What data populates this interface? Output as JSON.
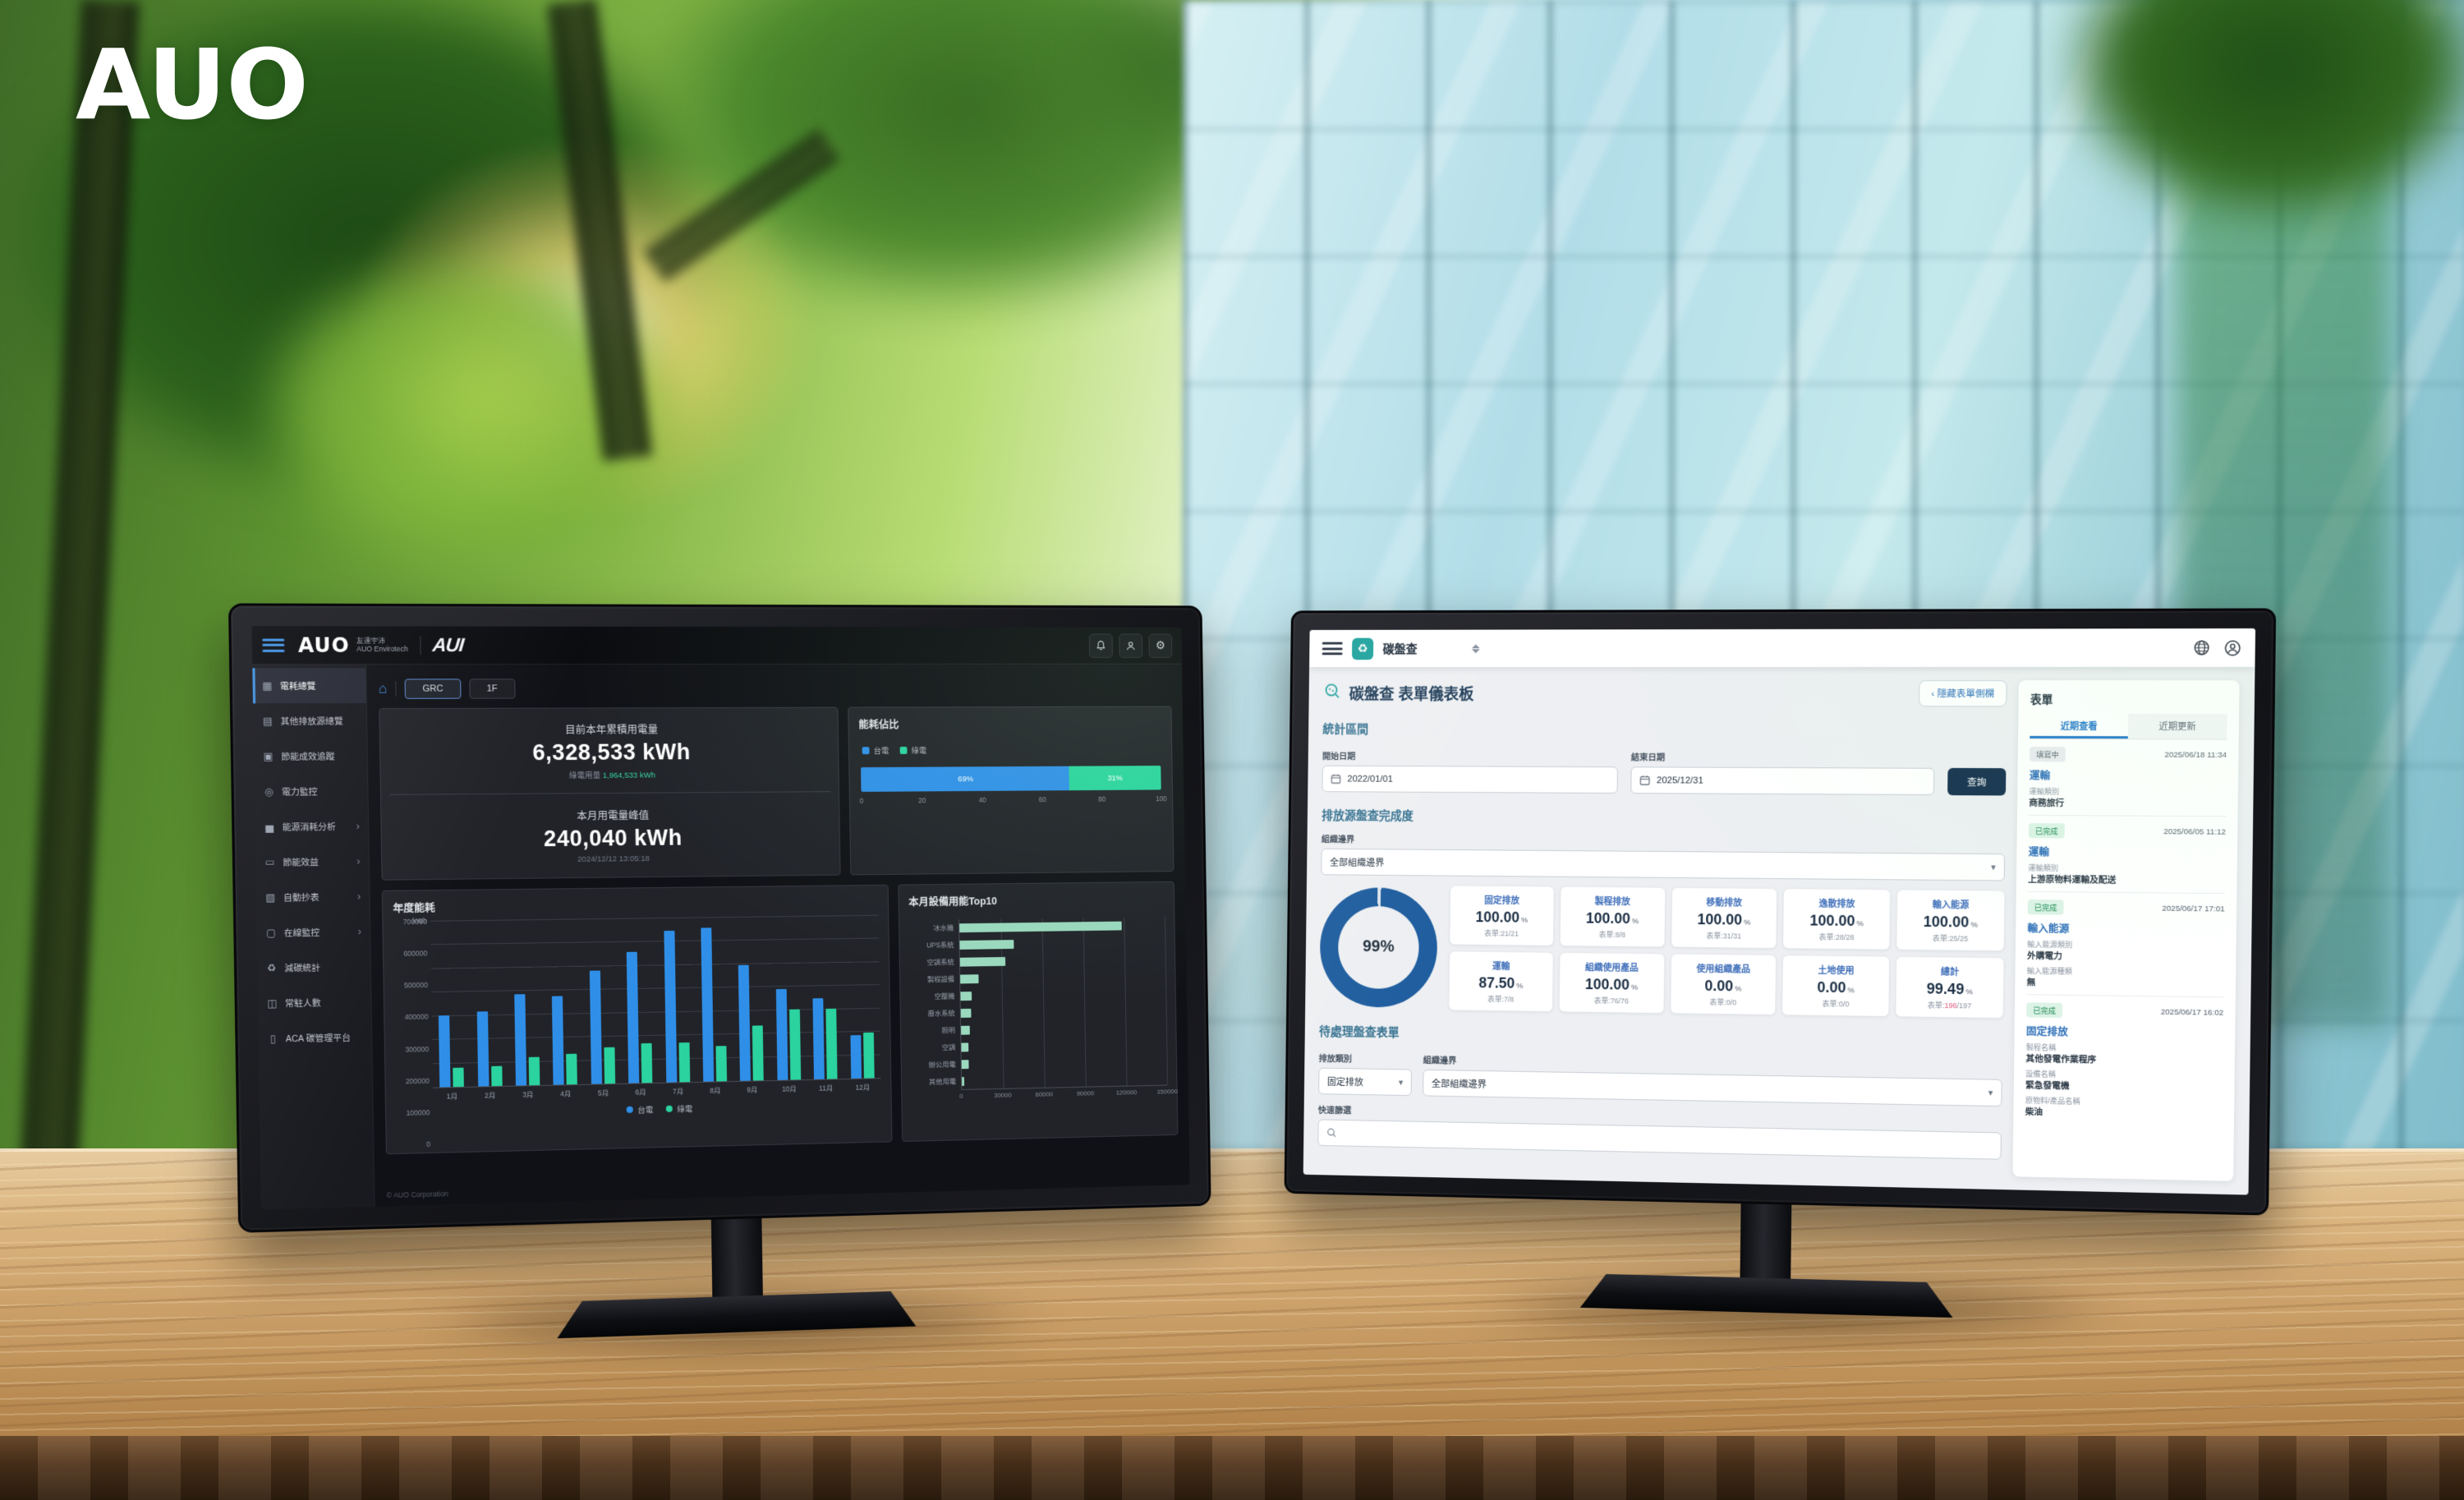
{
  "scene": {
    "brand_logo": "AUO"
  },
  "left_monitor": {
    "header": {
      "logo": "AUO",
      "logo_sub1": "友達宇沛",
      "logo_sub2": "AUO Envirotech",
      "logo2": "AUI",
      "icons": [
        "bell-icon",
        "user-icon",
        "gear-icon"
      ]
    },
    "sidebar": {
      "items": [
        {
          "icon": "▦",
          "label": "電耗總覽",
          "active": "true",
          "arrow": ""
        },
        {
          "icon": "▤",
          "label": "其他排放源總覽",
          "active": "false",
          "arrow": ""
        },
        {
          "icon": "▣",
          "label": "節能成效追蹤",
          "active": "false",
          "arrow": ""
        },
        {
          "icon": "◎",
          "label": "電力監控",
          "active": "false",
          "arrow": ""
        },
        {
          "icon": "▅",
          "label": "能源消耗分析",
          "active": "false",
          "arrow": "›"
        },
        {
          "icon": "▭",
          "label": "節能效益",
          "active": "false",
          "arrow": "›"
        },
        {
          "icon": "▧",
          "label": "自動抄表",
          "active": "false",
          "arrow": "›"
        },
        {
          "icon": "▢",
          "label": "在線監控",
          "active": "false",
          "arrow": "›"
        },
        {
          "icon": "♻",
          "label": "減碳統計",
          "active": "false",
          "arrow": ""
        },
        {
          "icon": "◫",
          "label": "常駐人數",
          "active": "false",
          "arrow": ""
        },
        {
          "icon": "▯",
          "label": "ACA 碳管理平台",
          "active": "false",
          "arrow": ""
        }
      ]
    },
    "toolbar": {
      "building_icon": "⌂",
      "tabs": [
        {
          "label": "GRC",
          "active": "true"
        },
        {
          "label": "1F",
          "active": "false"
        }
      ]
    },
    "kpi_cards": {
      "year": {
        "title": "目前本年累積用電量",
        "value": "6,328,533 kWh",
        "sub_label": "綠電用量",
        "sub_value": "1,964,533 kWh"
      },
      "month": {
        "title": "本月用電量峰值",
        "value": "240,040 kWh",
        "timestamp": "2024/12/12 13:05:18"
      }
    },
    "footer": "© AUO Corporation"
  },
  "right_monitor": {
    "appbar": {
      "logo_glyph": "♻",
      "app_title": "碳盤查"
    },
    "page": {
      "title": "碳盤查 表單儀表板",
      "collapse_button": "‹ 隱藏表單側欄"
    },
    "stats_section": {
      "heading": "統計區間",
      "start_label": "開始日期",
      "start_value": "2022/01/01",
      "end_label": "結束日期",
      "end_value": "2025/12/31",
      "query_button": "查詢"
    },
    "completion_section": {
      "heading": "排放源盤查完成度",
      "boundary_label": "組織邊界",
      "boundary_value": "全部組織邊界",
      "cards": [
        {
          "title": "固定排放",
          "value": "100.00",
          "unit": "%",
          "forms": "表單:21/21",
          "forms_red": "",
          "forms_suffix": ""
        },
        {
          "title": "製程排放",
          "value": "100.00",
          "unit": "%",
          "forms": "表單:8/8",
          "forms_red": "",
          "forms_suffix": ""
        },
        {
          "title": "移動排放",
          "value": "100.00",
          "unit": "%",
          "forms": "表單:31/31",
          "forms_red": "",
          "forms_suffix": ""
        },
        {
          "title": "逸散排放",
          "value": "100.00",
          "unit": "%",
          "forms": "表單:28/28",
          "forms_red": "",
          "forms_suffix": ""
        },
        {
          "title": "輸入能源",
          "value": "100.00",
          "unit": "%",
          "forms": "表單:25/25",
          "forms_red": "",
          "forms_suffix": ""
        },
        {
          "title": "運輸",
          "value": "87.50",
          "unit": "%",
          "forms": "表單:7/8",
          "forms_red": "",
          "forms_suffix": ""
        },
        {
          "title": "組織使用產品",
          "value": "100.00",
          "unit": "%",
          "forms": "表單:76/76",
          "forms_red": "",
          "forms_suffix": ""
        },
        {
          "title": "使用組織產品",
          "value": "0.00",
          "unit": "%",
          "forms": "表單:0/0",
          "forms_red": "",
          "forms_suffix": ""
        },
        {
          "title": "土地使用",
          "value": "0.00",
          "unit": "%",
          "forms": "表單:0/0",
          "forms_red": "",
          "forms_suffix": ""
        },
        {
          "title": "總計",
          "value": "99.49",
          "unit": "%",
          "forms": "表單:",
          "forms_red": "196",
          "forms_suffix": "/197"
        }
      ]
    },
    "pending_section": {
      "heading": "待處理盤查表單",
      "category_label": "排放類別",
      "category_value": "固定排放",
      "boundary_label": "組織邊界",
      "boundary_value": "全部組織邊界",
      "filter_label": "快速篩選"
    },
    "panel": {
      "heading": "表單",
      "tabs": [
        {
          "label": "近期查看",
          "active": "true"
        },
        {
          "label": "近期更新",
          "active": "false"
        }
      ],
      "items": [
        {
          "status": "填寫中",
          "status_type": "editing",
          "datetime": "2025/06/18 11:34",
          "title": "運輸",
          "f1l": "運輸類別",
          "f1v": "商務旅行",
          "f2l": "",
          "f2v": "",
          "f3l": "",
          "f3v": ""
        },
        {
          "status": "已完成",
          "status_type": "done",
          "datetime": "2025/06/05 11:12",
          "title": "運輸",
          "f1l": "運輸類別",
          "f1v": "上游原物料運輸及配送",
          "f2l": "",
          "f2v": "",
          "f3l": "",
          "f3v": ""
        },
        {
          "status": "已完成",
          "status_type": "done",
          "datetime": "2025/06/17 17:01",
          "title": "輸入能源",
          "f1l": "輸入能源類別",
          "f1v": "外購電力",
          "f2l": "輸入能源種類",
          "f2v": "無",
          "f3l": "",
          "f3v": ""
        },
        {
          "status": "已完成",
          "status_type": "done",
          "datetime": "2025/06/17 16:02",
          "title": "固定排放",
          "f1l": "製程名稱",
          "f1v": "其他發電作業程序",
          "f2l": "設備名稱",
          "f2v": "緊急發電機",
          "f3l": "原物料/產品名稱",
          "f3v": "柴油"
        }
      ]
    }
  },
  "chart_data": [
    {
      "id": "annual_energy",
      "type": "bar",
      "title": "年度能耗",
      "ylabel": "kWh",
      "ylim": [
        0,
        700000
      ],
      "yticks": [
        0,
        100000,
        200000,
        300000,
        400000,
        500000,
        600000,
        700000
      ],
      "categories": [
        "1月",
        "2月",
        "3月",
        "4月",
        "5月",
        "6月",
        "7月",
        "8月",
        "9月",
        "10月",
        "11月",
        "12月"
      ],
      "series": [
        {
          "name": "台電",
          "color": "#2f8fe8",
          "values": [
            300000,
            315000,
            385000,
            375000,
            480000,
            555000,
            645000,
            655000,
            495000,
            390000,
            345000,
            185000
          ]
        },
        {
          "name": "綠電",
          "color": "#2bd39e",
          "values": [
            80000,
            85000,
            120000,
            128000,
            155000,
            168000,
            168000,
            150000,
            235000,
            300000,
            300000,
            195000
          ]
        }
      ],
      "legend_position": "bottom",
      "grid": true
    },
    {
      "id": "energy_ratio",
      "type": "stacked-bar",
      "title": "能耗佔比",
      "series": [
        {
          "name": "台電",
          "color": "#2f8fe8",
          "value": 69,
          "label": "69%"
        },
        {
          "name": "綠電",
          "color": "#2bd39e",
          "value": 31,
          "label": "31%"
        }
      ],
      "xlim": [
        0,
        100
      ],
      "xticks": [
        0,
        20,
        40,
        60,
        80,
        100
      ]
    },
    {
      "id": "top10",
      "type": "bar-horizontal",
      "title": "本月設備用能Top10",
      "categories": [
        "冰水機",
        "UPS系統",
        "空調系統",
        "製程設備",
        "空壓機",
        "廢水系統",
        "照明",
        "空調",
        "辦公用電",
        "其他用電"
      ],
      "values": [
        118000,
        39000,
        33000,
        13500,
        8000,
        7500,
        6500,
        5500,
        5000,
        2000
      ],
      "xlim": [
        0,
        150000
      ],
      "xticks": [
        0,
        30000,
        60000,
        90000,
        120000,
        150000
      ],
      "color": "#9ad9bd"
    },
    {
      "id": "completion_donut",
      "type": "donut",
      "value": 99,
      "label": "99%",
      "color": "#1d5c9e",
      "track": "#dde4ec"
    }
  ]
}
